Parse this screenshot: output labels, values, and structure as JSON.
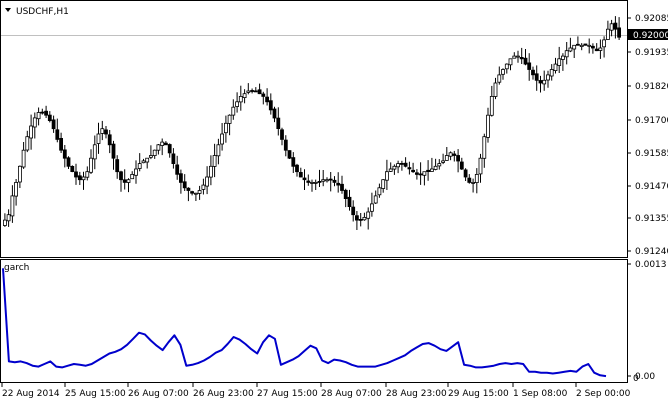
{
  "symbol_label": "USDCHF,H1",
  "indicator_label": "garch",
  "current_price": "0.92000",
  "colors": {
    "background": "#ffffff",
    "foreground": "#000000",
    "garch_line": "#0000cc",
    "price_line": "#c0c0c0",
    "price_tag_bg": "#000000",
    "price_tag_text": "#ffffff"
  },
  "price_axis_labels": [
    "0.92085",
    "0.92000",
    "0.91935",
    "0.91820",
    "0.91700",
    "0.91585",
    "0.91470",
    "0.91355",
    "0.91240"
  ],
  "indicator_axis_labels": [
    "0.0013",
    "0.00",
    "0"
  ],
  "time_axis_labels": [
    "22 Aug 2014",
    "25 Aug 15:00",
    "26 Aug 07:00",
    "26 Aug 23:00",
    "27 Aug 15:00",
    "28 Aug 07:00",
    "28 Aug 23:00",
    "29 Aug 15:00",
    "1 Sep 08:00",
    "2 Sep 00:00"
  ],
  "chart_data": [
    {
      "type": "candlestick",
      "title": "USDCHF,H1",
      "ylim": [
        0.9119,
        0.9212
      ],
      "last_price": 0.92,
      "close": [
        0.9132,
        0.9134,
        0.9141,
        0.9146,
        0.9152,
        0.9158,
        0.9163,
        0.9167,
        0.917,
        0.9172,
        0.9172,
        0.9171,
        0.9169,
        0.9166,
        0.9162,
        0.9158,
        0.9155,
        0.9152,
        0.915,
        0.9148,
        0.9147,
        0.9148,
        0.915,
        0.9155,
        0.916,
        0.9164,
        0.9166,
        0.9164,
        0.916,
        0.9155,
        0.915,
        0.9147,
        0.9146,
        0.9147,
        0.9149,
        0.9151,
        0.9153,
        0.9154,
        0.9155,
        0.9156,
        0.9158,
        0.916,
        0.9161,
        0.916,
        0.9157,
        0.9153,
        0.9149,
        0.9146,
        0.9144,
        0.9143,
        0.9142,
        0.9142,
        0.9143,
        0.9145,
        0.9148,
        0.9152,
        0.9156,
        0.916,
        0.9164,
        0.9168,
        0.9171,
        0.9174,
        0.9176,
        0.9178,
        0.9179,
        0.918,
        0.918,
        0.918,
        0.9179,
        0.9178,
        0.9176,
        0.9173,
        0.917,
        0.9166,
        0.9162,
        0.9158,
        0.9155,
        0.9152,
        0.915,
        0.9148,
        0.9147,
        0.9146,
        0.9146,
        0.9146,
        0.9146,
        0.9147,
        0.9147,
        0.9147,
        0.9146,
        0.9145,
        0.9143,
        0.914,
        0.9137,
        0.9134,
        0.9132,
        0.9132,
        0.9133,
        0.9135,
        0.9138,
        0.9141,
        0.9144,
        0.9147,
        0.915,
        0.9151,
        0.9152,
        0.9153,
        0.9153,
        0.9152,
        0.9151,
        0.915,
        0.9149,
        0.9149,
        0.915,
        0.915,
        0.9151,
        0.9152,
        0.9153,
        0.9154,
        0.9156,
        0.9157,
        0.9156,
        0.9154,
        0.9151,
        0.9148,
        0.9146,
        0.9146,
        0.9149,
        0.9155,
        0.9163,
        0.9171,
        0.9178,
        0.9183,
        0.9186,
        0.9188,
        0.919,
        0.9192,
        0.9193,
        0.9193,
        0.9192,
        0.919,
        0.9188,
        0.9186,
        0.9184,
        0.9183,
        0.9184,
        0.9186,
        0.9188,
        0.919,
        0.9192,
        0.9193,
        0.9195,
        0.9196,
        0.9197,
        0.9197,
        0.9197,
        0.9197,
        0.9197,
        0.9196,
        0.9195,
        0.9196,
        0.9199,
        0.9203,
        0.9205,
        0.9203,
        0.92
      ],
      "ohlc_series_name": "USDCHF,H1"
    },
    {
      "type": "line",
      "title": "garch",
      "ylim": [
        0.0,
        0.0013
      ],
      "values": [
        0.00125,
        0.00018,
        0.00017,
        0.00018,
        0.00016,
        0.00013,
        0.00012,
        0.00015,
        0.00018,
        0.00012,
        0.00011,
        0.00013,
        0.00015,
        0.00014,
        0.00013,
        0.00015,
        0.00019,
        0.00023,
        0.00027,
        0.00029,
        0.00032,
        0.00037,
        0.00044,
        0.00051,
        0.00049,
        0.00042,
        0.00036,
        0.00031,
        0.0004,
        0.00048,
        0.00037,
        0.00013,
        0.00014,
        0.00016,
        0.00019,
        0.00023,
        0.00028,
        0.00031,
        0.00038,
        0.00046,
        0.00043,
        0.00038,
        0.00032,
        0.00027,
        0.0004,
        0.00048,
        0.00044,
        0.00014,
        0.00017,
        0.0002,
        0.00024,
        0.0003,
        0.00036,
        0.00033,
        0.00019,
        0.00016,
        0.0002,
        0.00019,
        0.00017,
        0.00014,
        0.00012,
        0.00012,
        0.00012,
        0.00012,
        0.00014,
        0.00016,
        0.00019,
        0.00022,
        0.00025,
        0.0003,
        0.00034,
        0.00038,
        0.00039,
        0.00036,
        0.00032,
        0.0003,
        0.00035,
        0.0004,
        0.00014,
        0.00013,
        0.00011,
        0.00011,
        0.00012,
        0.00013,
        0.00015,
        0.00016,
        0.00015,
        0.00016,
        0.00015,
        6e-05,
        6e-05,
        5e-05,
        5e-05,
        4e-05,
        5e-05,
        6e-05,
        7e-05,
        6e-05,
        0.00012,
        0.00015,
        5e-05,
        2e-05,
        1e-05
      ]
    }
  ]
}
